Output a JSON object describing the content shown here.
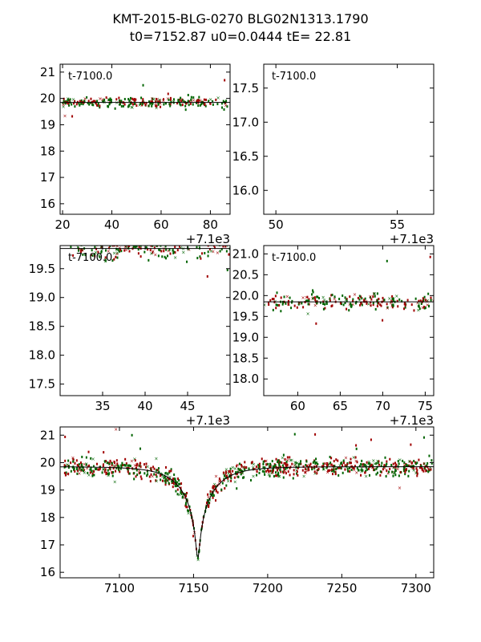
{
  "title_line1": "KMT-2015-BLG-0270 BLG02N1313.1790",
  "title_line2": "t0=7152.87 u0=0.0444 tE=  22.81",
  "chart_data": [
    {
      "type": "scatter",
      "panel": "top-left",
      "annotation": "t-7100.0",
      "xlim": [
        19,
        88
      ],
      "ylim": [
        21.3,
        15.6
      ],
      "xticks": [
        20,
        40,
        60,
        80
      ],
      "xtick_labels": [
        "20",
        "40",
        "60",
        "80"
      ],
      "yticks": [
        16,
        17,
        18,
        19,
        20,
        21
      ],
      "ytick_labels": [
        "16",
        "17",
        "18",
        "19",
        "20",
        "21"
      ],
      "offset_label": "+7.1e3",
      "gen": [
        20,
        87,
        260
      ]
    },
    {
      "type": "scatter",
      "panel": "top-right",
      "annotation": "t-7100.0",
      "xlim": [
        49.5,
        56.5
      ],
      "ylim": [
        17.85,
        15.65
      ],
      "xticks": [
        50,
        55
      ],
      "xtick_labels": [
        "50",
        "55"
      ],
      "yticks": [
        16.0,
        16.5,
        17.0,
        17.5
      ],
      "ytick_labels": [
        "16.0",
        "16.5",
        "17.0",
        "17.5"
      ],
      "offset_label": "+7.1e3",
      "gen": [
        51,
        56.5,
        140
      ]
    },
    {
      "type": "scatter",
      "panel": "mid-left",
      "annotation": "t-7100.0",
      "xlim": [
        30,
        50
      ],
      "ylim": [
        19.9,
        17.3
      ],
      "xticks": [
        35,
        40,
        45
      ],
      "xtick_labels": [
        "35",
        "40",
        "45"
      ],
      "yticks": [
        17.5,
        18.0,
        18.5,
        19.0,
        19.5
      ],
      "ytick_labels": [
        "17.5",
        "18.0",
        "18.5",
        "19.0",
        "19.5"
      ],
      "offset_label": "+7.1e3",
      "gen": [
        31,
        50,
        190
      ]
    },
    {
      "type": "scatter",
      "panel": "mid-right",
      "annotation": "t-7100.0",
      "xlim": [
        56,
        76
      ],
      "ylim": [
        21.2,
        17.6
      ],
      "xticks": [
        60,
        65,
        70,
        75
      ],
      "xtick_labels": [
        "60",
        "65",
        "70",
        "75"
      ],
      "yticks": [
        18.0,
        18.5,
        19.0,
        19.5,
        20.0,
        20.5,
        21.0
      ],
      "ytick_labels": [
        "18.0",
        "18.5",
        "19.0",
        "19.5",
        "20.0",
        "20.5",
        "21.0"
      ],
      "offset_label": "+7.1e3",
      "gen": [
        56,
        76,
        230
      ]
    },
    {
      "type": "scatter",
      "panel": "bottom",
      "annotation": "",
      "xlim": [
        7060,
        7312
      ],
      "ylim": [
        21.3,
        15.8
      ],
      "xticks": [
        7100,
        7150,
        7200,
        7250,
        7300
      ],
      "xtick_labels": [
        "7100",
        "7150",
        "7200",
        "7250",
        "7300"
      ],
      "yticks": [
        16,
        17,
        18,
        19,
        20,
        21
      ],
      "ytick_labels": [
        "16",
        "17",
        "18",
        "19",
        "20",
        "21"
      ],
      "offset_label": "",
      "gen": [
        7063,
        7311,
        900
      ]
    }
  ],
  "model": {
    "t0": 7152.87,
    "u0": 0.0444,
    "tE": 22.81,
    "baseline_mag": 19.85,
    "peak_mag": 16.5
  },
  "colors": {
    "series_a": "#006400",
    "series_b": "#a00000",
    "model_line": "#000000"
  },
  "series": [
    "green",
    "red"
  ]
}
